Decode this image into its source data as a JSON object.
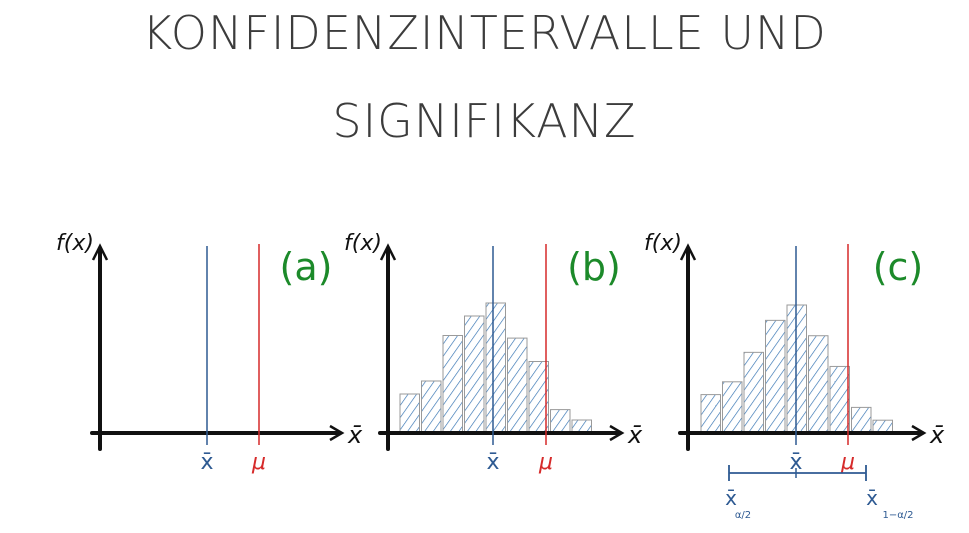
{
  "title": {
    "line1": "KONFIDENZINTERVALLE UND",
    "line2": "SIGNIFIKANZ"
  },
  "colors": {
    "axis": "#111111",
    "sample_mean": "#2e5a92",
    "population_mean": "#d62a2a",
    "panel_label": "#1c8a2a",
    "hatch": "#2e6fb0",
    "bar_outline": "#9a9a9a"
  },
  "panels": [
    {
      "id": "a",
      "label": "(a)",
      "y_axis_label": "f(x)",
      "x_axis_label": "x̄",
      "mean_label": "x̄",
      "mu_label": "μ",
      "histogram": []
    },
    {
      "id": "b",
      "label": "(b)",
      "y_axis_label": "f(x)",
      "x_axis_label": "x̄",
      "mean_label": "x̄",
      "mu_label": "μ",
      "histogram": [
        0.3,
        0.4,
        0.75,
        0.9,
        1.0,
        0.73,
        0.55,
        0.18,
        0.1
      ]
    },
    {
      "id": "c",
      "label": "(c)",
      "y_axis_label": "f(x)",
      "x_axis_label": "x̄",
      "mean_label": "x̄",
      "mu_label": "μ",
      "histogram": [
        0.3,
        0.4,
        0.63,
        0.88,
        1.0,
        0.76,
        0.52,
        0.2,
        0.1
      ],
      "interval": {
        "lower_label": "x̄",
        "lower_sub": "α/2",
        "upper_label": "x̄",
        "upper_sub": "1−α/2"
      }
    }
  ]
}
